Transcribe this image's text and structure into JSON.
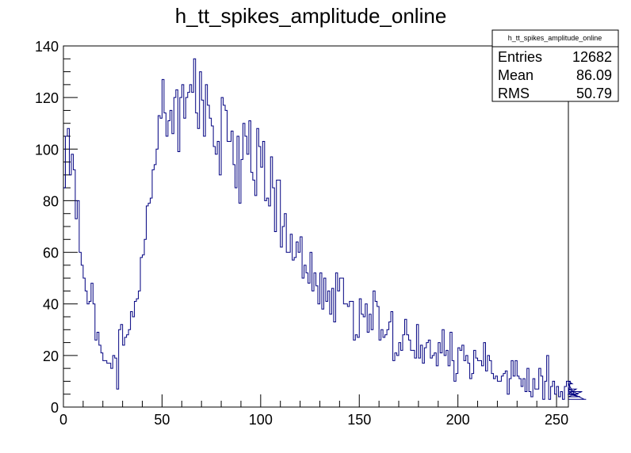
{
  "chart_data": {
    "type": "histogram",
    "title": "h_tt_spikes_amplitude_online",
    "xlim": [
      0,
      256
    ],
    "ylim": [
      0,
      140
    ],
    "bin_width": 1,
    "x_ticks": [
      0,
      50,
      100,
      150,
      200,
      250
    ],
    "y_ticks": [
      0,
      20,
      40,
      60,
      80,
      100,
      120,
      140
    ],
    "line_color": "#000080",
    "stats": {
      "name": "h_tt_spikes_amplitude_online",
      "entries_label": "Entries",
      "entries": "12682",
      "mean_label": "Mean",
      "mean": "86.09",
      "rms_label": "RMS",
      "rms": "50.79"
    },
    "values": [
      85,
      105,
      108,
      90,
      98,
      92,
      73,
      80,
      60,
      55,
      50,
      45,
      40,
      41,
      48,
      40,
      26,
      29,
      24,
      21,
      18,
      18,
      17,
      17,
      15,
      20,
      19,
      7,
      30,
      32,
      24,
      27,
      28,
      30,
      37,
      35,
      41,
      42,
      45,
      58,
      59,
      65,
      78,
      79,
      81,
      92,
      94,
      100,
      113,
      112,
      127,
      114,
      105,
      111,
      115,
      106,
      120,
      123,
      99,
      120,
      125,
      112,
      120,
      122,
      125,
      122,
      135,
      114,
      108,
      130,
      119,
      105,
      125,
      117,
      112,
      109,
      101,
      98,
      103,
      90,
      120,
      117,
      115,
      103,
      103,
      107,
      94,
      85,
      105,
      79,
      96,
      110,
      105,
      98,
      111,
      91,
      88,
      82,
      108,
      101,
      93,
      103,
      80,
      81,
      78,
      97,
      85,
      68,
      88,
      88,
      62,
      70,
      75,
      60,
      60,
      67,
      57,
      58,
      64,
      60,
      66,
      50,
      55,
      52,
      48,
      60,
      45,
      52,
      47,
      40,
      52,
      38,
      50,
      41,
      45,
      36,
      46,
      33,
      52,
      45,
      50,
      50,
      40,
      40,
      39,
      41,
      41,
      26,
      28,
      27,
      42,
      36,
      35,
      40,
      29,
      36,
      30,
      45,
      41,
      39,
      26,
      30,
      27,
      28,
      30,
      33,
      37,
      18,
      21,
      20,
      25,
      22,
      28,
      34,
      28,
      26,
      22,
      22,
      19,
      32,
      19,
      24,
      17,
      23,
      25,
      26,
      19,
      20,
      21,
      16,
      25,
      21,
      30,
      20,
      22,
      16,
      29,
      18,
      10,
      13,
      23,
      22,
      24,
      18,
      20,
      17,
      11,
      13,
      22,
      19,
      18,
      18,
      16,
      25,
      14,
      20,
      18,
      13,
      11,
      12,
      10,
      10,
      12,
      13,
      14,
      5,
      11,
      18,
      12,
      18,
      12,
      11,
      8,
      11,
      6,
      15,
      6,
      4,
      11,
      7,
      7,
      15,
      12,
      3,
      10,
      20,
      3,
      8,
      10,
      5,
      8,
      4,
      6,
      3,
      8,
      10,
      5,
      10,
      9,
      5,
      7,
      5,
      4,
      6,
      3,
      3
    ]
  }
}
